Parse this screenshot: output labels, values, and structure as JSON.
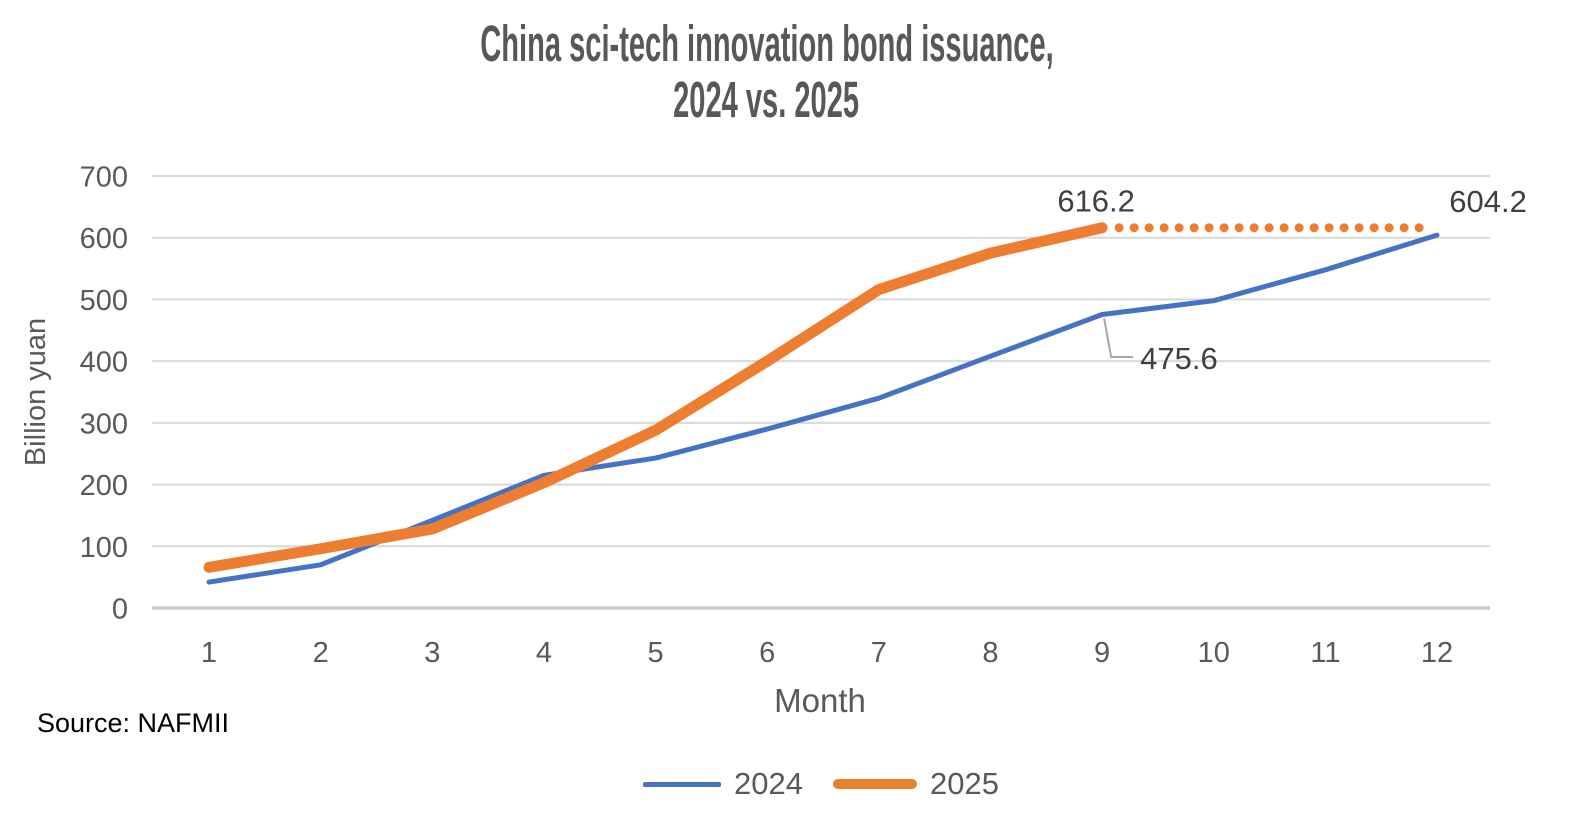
{
  "title": {
    "line1": "China sci-tech innovation bond issuance,",
    "line2": "2024 vs. 2025"
  },
  "source": "Source: NAFMII",
  "legend": [
    {
      "series": "2024",
      "color": "#4472C4"
    },
    {
      "series": "2025",
      "color": "#ED7D31"
    }
  ],
  "chart_data": {
    "type": "line",
    "title": "China sci-tech innovation bond issuance, 2024 vs. 2025",
    "xlabel": "Month",
    "ylabel": "Billion yuan",
    "x": [
      1,
      2,
      3,
      4,
      5,
      6,
      7,
      8,
      9,
      10,
      11,
      12
    ],
    "ylim": [
      0,
      700
    ],
    "ytick_step": 100,
    "grid": "horizontal",
    "legend_position": "bottom",
    "series": [
      {
        "name": "2024",
        "color": "#4472C4",
        "values": [
          42,
          70,
          142,
          215,
          243,
          290,
          340,
          408,
          475.6,
          498,
          548,
          604.2
        ]
      },
      {
        "name": "2025",
        "color": "#ED7D31",
        "values": [
          66,
          96,
          128,
          203,
          288,
          400,
          516,
          575,
          616.2
        ]
      }
    ],
    "projection": {
      "series": "2025",
      "value": 616.2,
      "from_month": 9,
      "to_month": 12,
      "style": "round-dotted",
      "color": "#ED7D31"
    },
    "annotations": [
      {
        "label": "616.2",
        "series": "2025",
        "month": 9,
        "value": 616.2
      },
      {
        "label": "604.2",
        "series": "2024",
        "month": 12,
        "value": 604.2
      },
      {
        "label": "475.6",
        "series": "2024",
        "month": 9,
        "value": 475.6,
        "leader": true
      }
    ],
    "colors": {
      "gridline": "#D9D9D9",
      "axis_line": "#C9C9C9",
      "tick_text": "#595959",
      "annotation_text": "#404040",
      "leader_line": "#A6A6A6",
      "title_text": "#58585a"
    }
  }
}
